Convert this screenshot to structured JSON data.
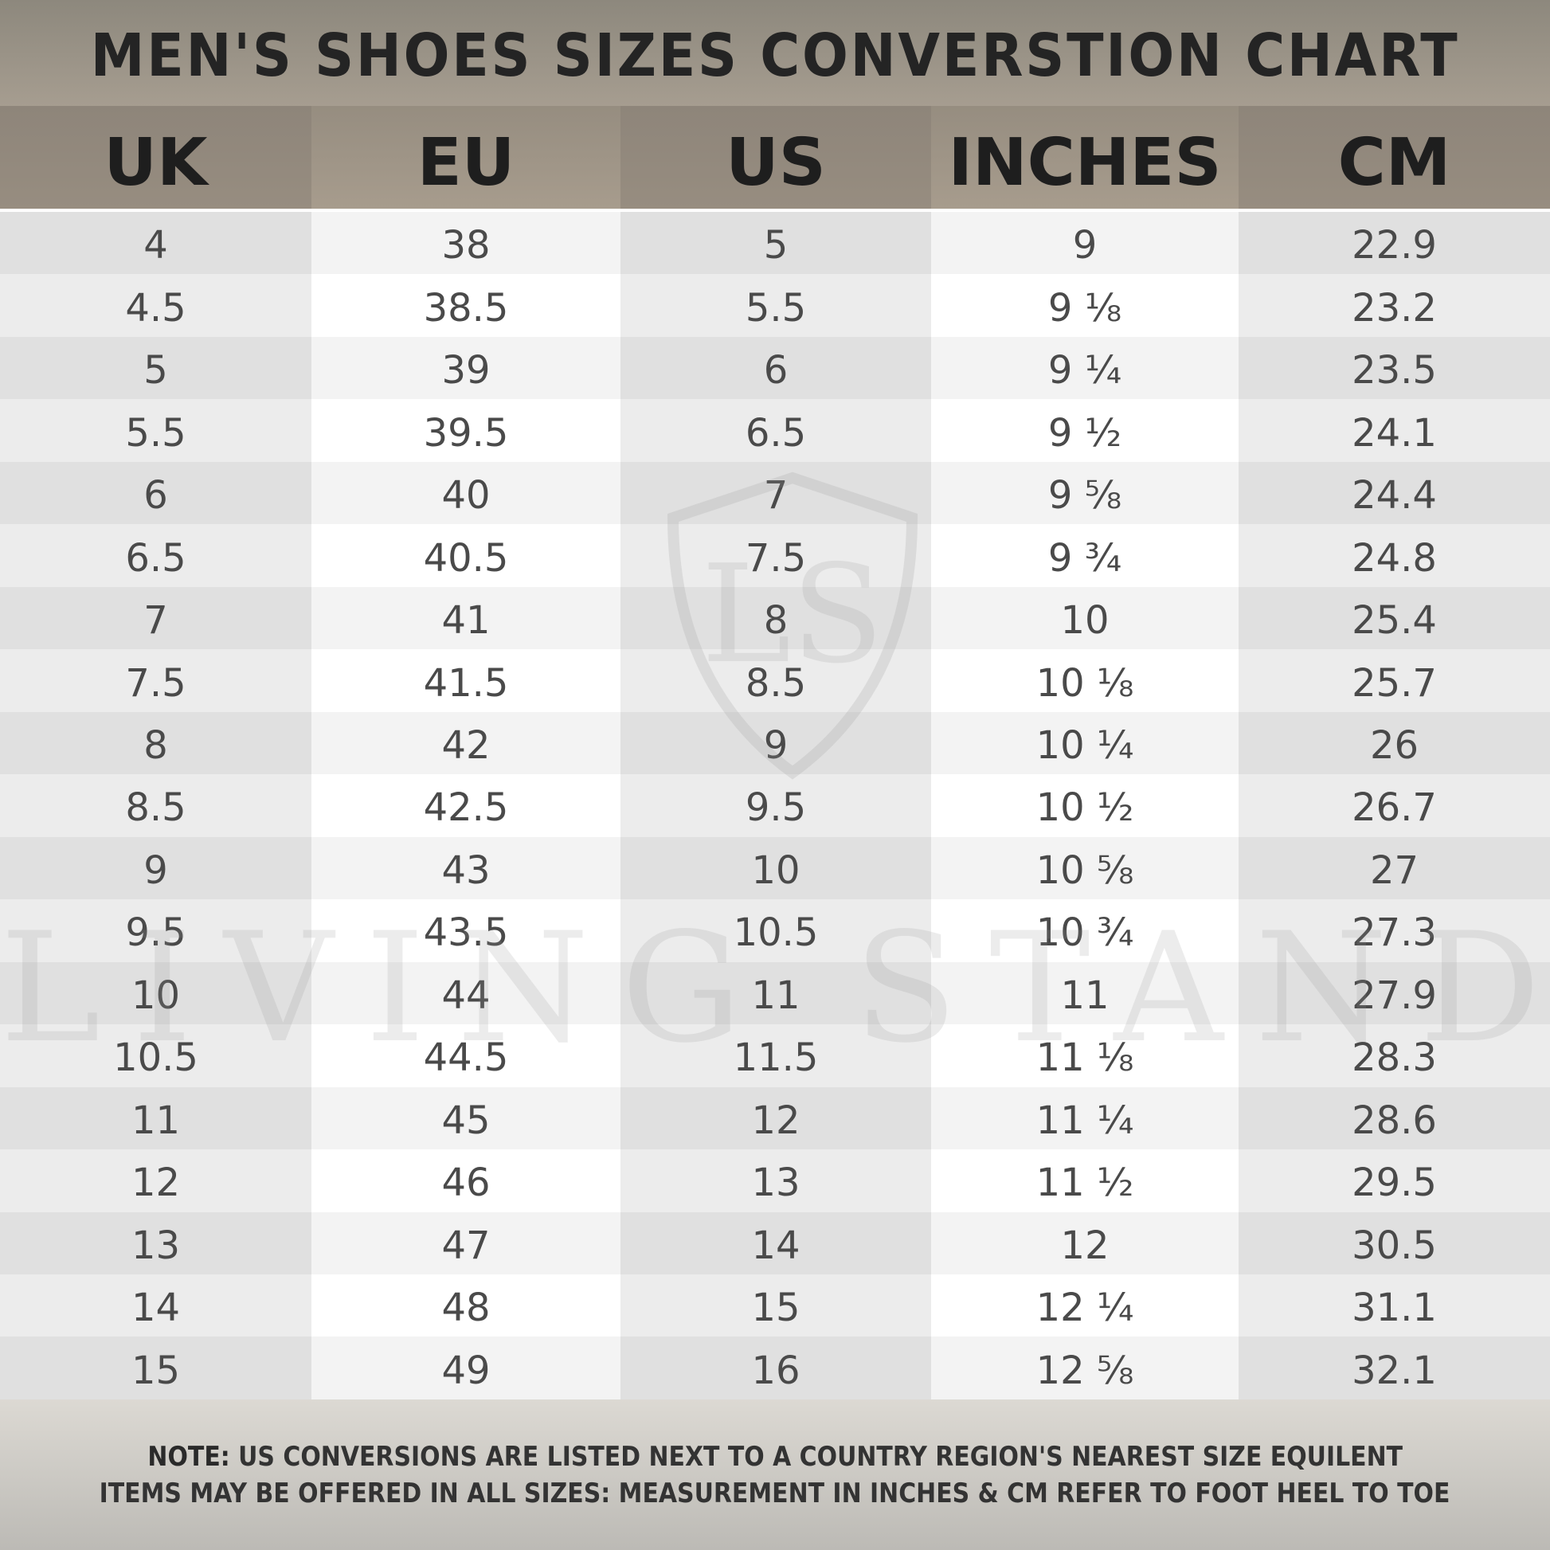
{
  "title": "MEN'S SHOES SIZES CONVERSTION CHART",
  "watermark": "LIVING STANDARD",
  "chart_data": {
    "type": "table",
    "title": "MEN'S SHOES SIZES CONVERSTION CHART",
    "columns": [
      "UK",
      "EU",
      "US",
      "INCHES",
      "CM"
    ],
    "rows": [
      [
        "4",
        "38",
        "5",
        "9",
        "22.9"
      ],
      [
        "4.5",
        "38.5",
        "5.5",
        "9 ⅛",
        "23.2"
      ],
      [
        "5",
        "39",
        "6",
        "9 ¼",
        "23.5"
      ],
      [
        "5.5",
        "39.5",
        "6.5",
        "9 ½",
        "24.1"
      ],
      [
        "6",
        "40",
        "7",
        "9 ⅝",
        "24.4"
      ],
      [
        "6.5",
        "40.5",
        "7.5",
        "9 ¾",
        "24.8"
      ],
      [
        "7",
        "41",
        "8",
        "10",
        "25.4"
      ],
      [
        "7.5",
        "41.5",
        "8.5",
        "10 ⅛",
        "25.7"
      ],
      [
        "8",
        "42",
        "9",
        "10 ¼",
        "26"
      ],
      [
        "8.5",
        "42.5",
        "9.5",
        "10 ½",
        "26.7"
      ],
      [
        "9",
        "43",
        "10",
        "10 ⅝",
        "27"
      ],
      [
        "9.5",
        "43.5",
        "10.5",
        "10 ¾",
        "27.3"
      ],
      [
        "10",
        "44",
        "11",
        "11",
        "27.9"
      ],
      [
        "10.5",
        "44.5",
        "11.5",
        "11 ⅛",
        "28.3"
      ],
      [
        "11",
        "45",
        "12",
        "11 ¼",
        "28.6"
      ],
      [
        "12",
        "46",
        "13",
        "11 ½",
        "29.5"
      ],
      [
        "13",
        "47",
        "14",
        "12",
        "30.5"
      ],
      [
        "14",
        "48",
        "15",
        "12 ¼",
        "31.1"
      ],
      [
        "15",
        "49",
        "16",
        "12 ⅝",
        "32.1"
      ]
    ]
  },
  "footer": {
    "note_label": "NOTE:",
    "line1": " US CONVERSIONS ARE LISTED NEXT TO A COUNTRY REGION'S NEAREST SIZE EQUILENT",
    "line2": "ITEMS MAY BE OFFERED IN ALL SIZES: MEASUREMENT IN INCHES & CM REFER TO FOOT HEEL TO TOE"
  },
  "colors": {
    "header": "#968d80",
    "title_band": "#9a9286",
    "text": "#4a4a4a"
  }
}
